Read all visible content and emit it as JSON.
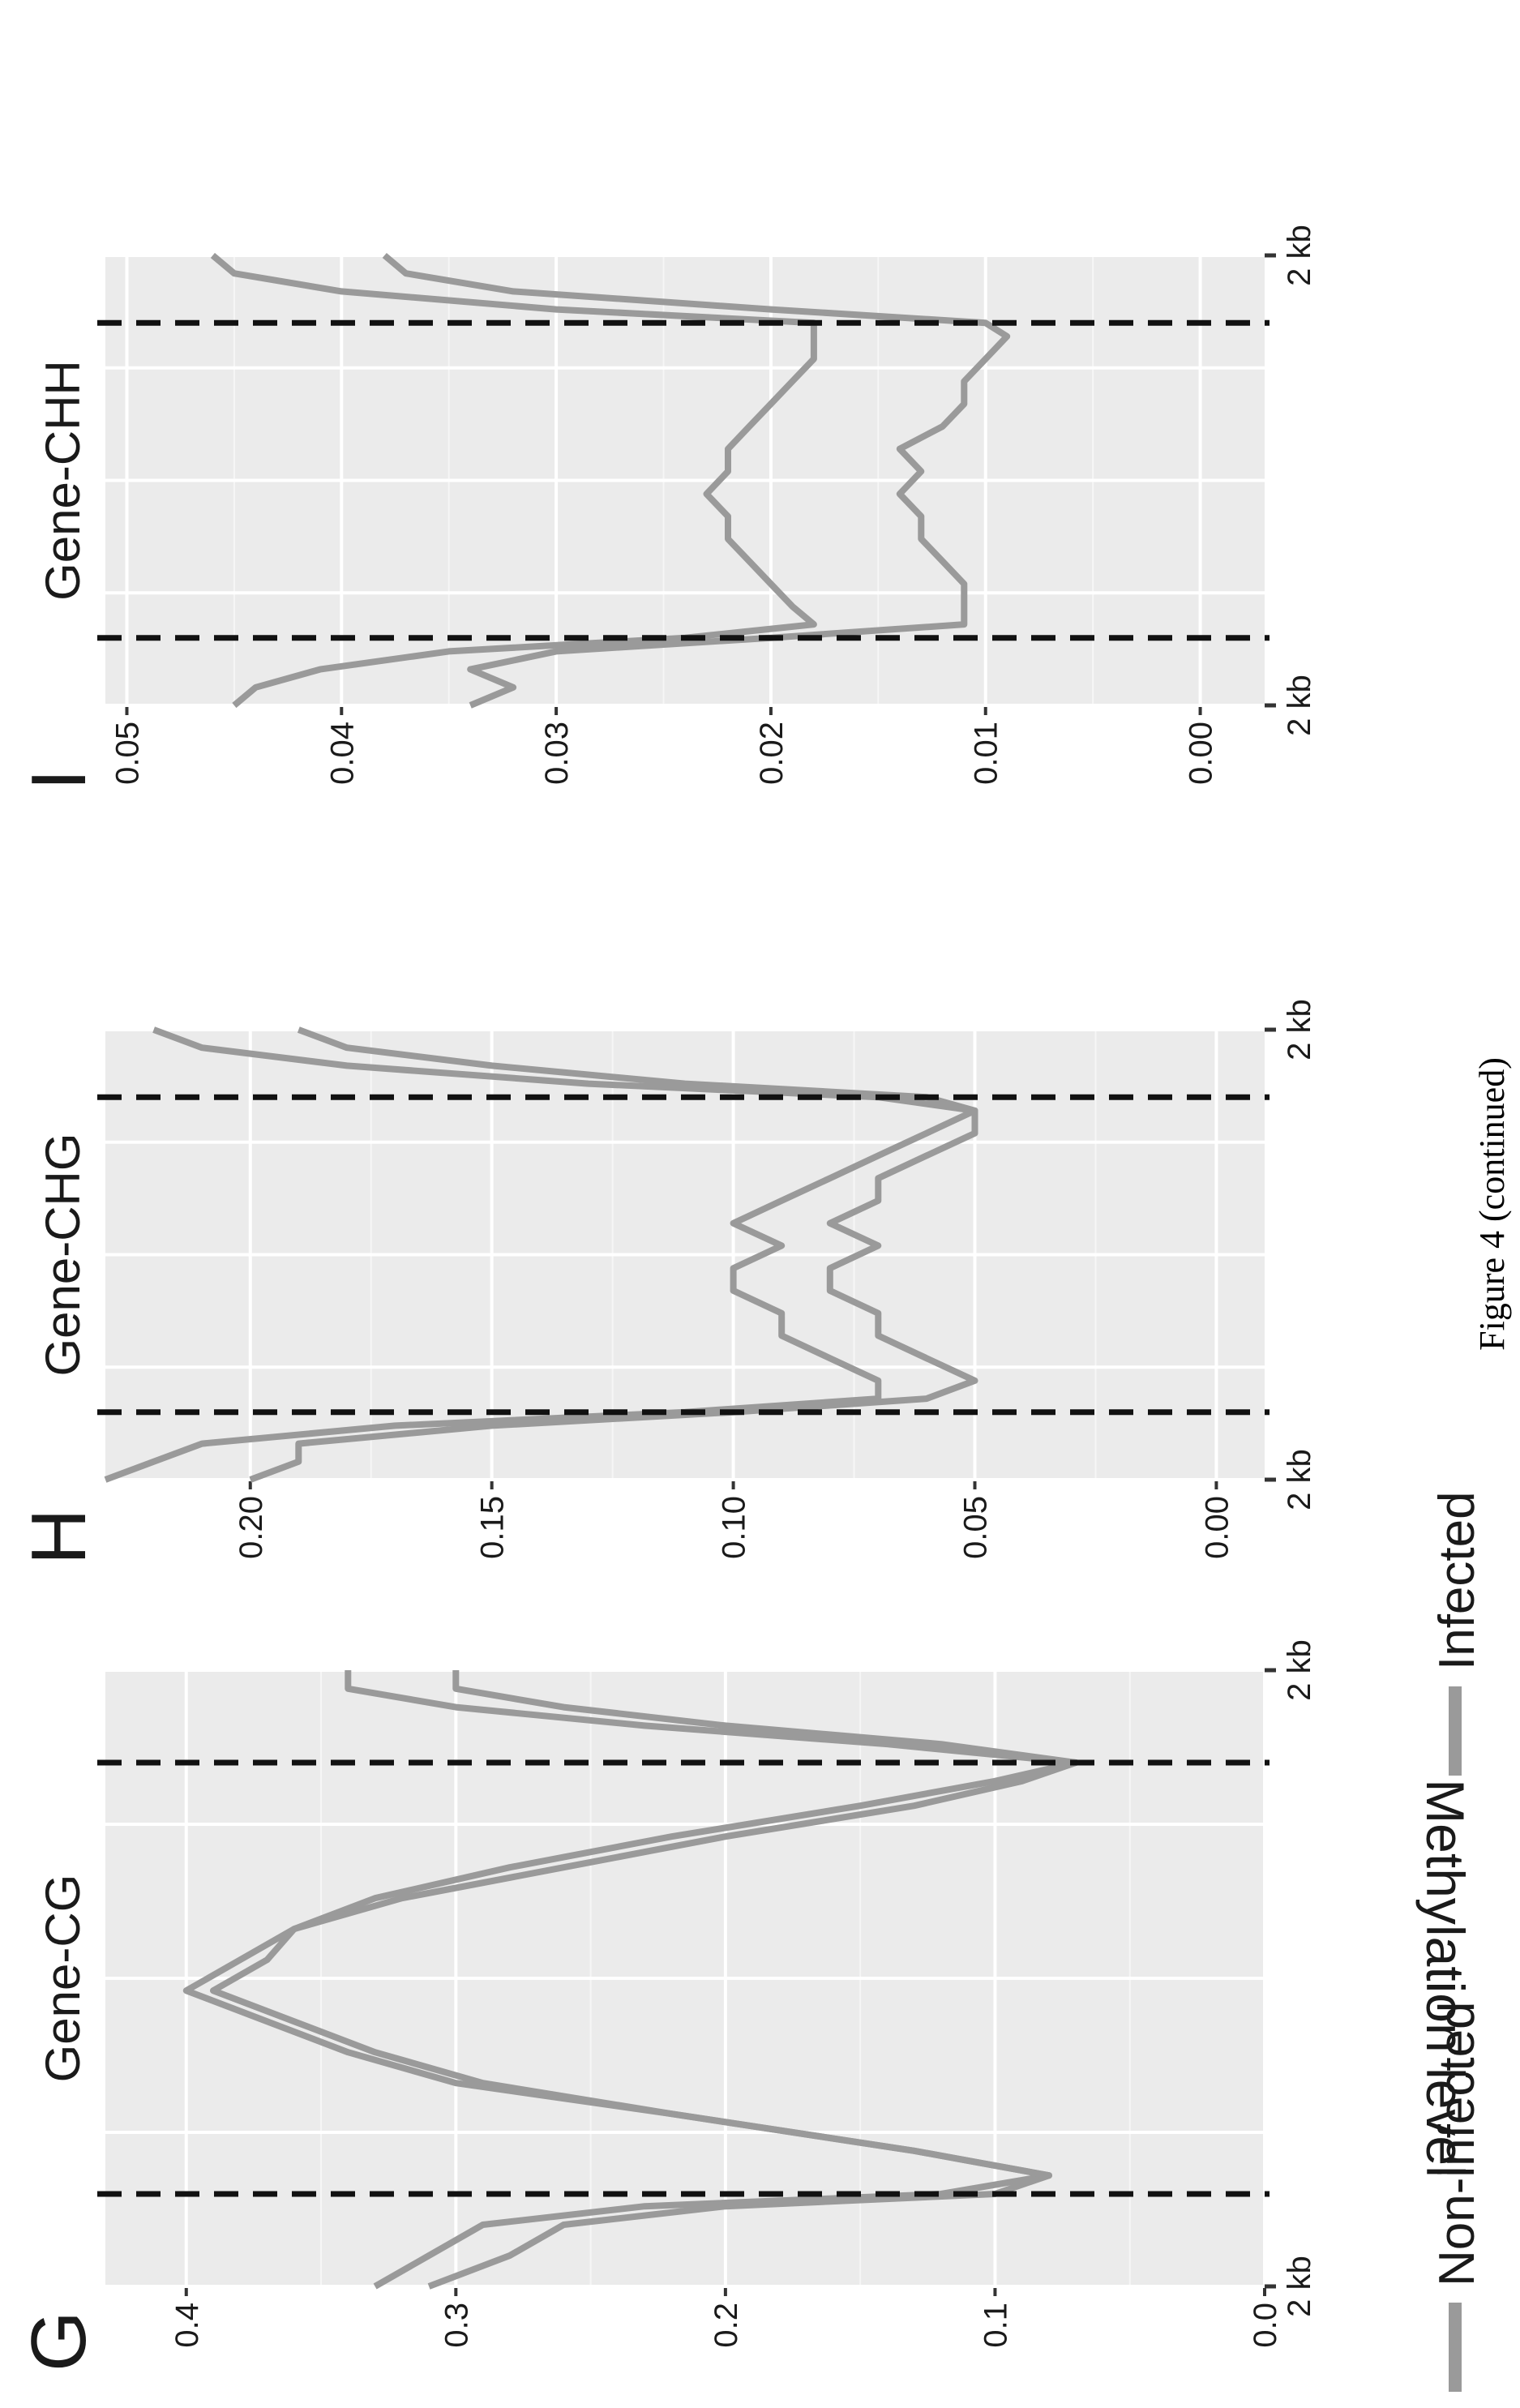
{
  "figure": {
    "caption": "Figure 4 (continued)",
    "y_axis_label": "Methylation level",
    "legend": {
      "placement": "bottom",
      "items": [
        {
          "label": "Non-infected",
          "color": "#9a9a9a"
        },
        {
          "label": "Infected",
          "color": "#9a9a9a"
        }
      ]
    }
  },
  "chart_data": [
    {
      "type": "line",
      "panel_letter": "G",
      "title": "Gene-CG",
      "xlabel": "",
      "ylabel": "Methylation level",
      "x_tick_labels": [
        "2 kb",
        "2 kb"
      ],
      "x_range": [
        0,
        100
      ],
      "boundaries": [
        15,
        85
      ],
      "ylim": [
        0.0,
        0.43
      ],
      "yticks": [
        "0.0",
        "0.1",
        "0.2",
        "0.3",
        "0.4"
      ],
      "grid": true,
      "series": [
        {
          "name": "Non-infected",
          "color": "#9a9a9a",
          "x": [
            0,
            5,
            10,
            13,
            15,
            18,
            22,
            28,
            33,
            38,
            43,
            48,
            53,
            58,
            63,
            68,
            73,
            78,
            82,
            85,
            88,
            91,
            94,
            97,
            100
          ],
          "y": [
            0.33,
            0.31,
            0.29,
            0.23,
            0.12,
            0.08,
            0.13,
            0.22,
            0.29,
            0.33,
            0.36,
            0.39,
            0.37,
            0.36,
            0.33,
            0.28,
            0.22,
            0.15,
            0.1,
            0.07,
            0.12,
            0.2,
            0.26,
            0.3,
            0.3
          ]
        },
        {
          "name": "Infected",
          "color": "#9a9a9a",
          "x": [
            0,
            5,
            10,
            13,
            15,
            18,
            22,
            28,
            33,
            38,
            43,
            48,
            53,
            58,
            63,
            68,
            73,
            78,
            82,
            85,
            88,
            91,
            94,
            97,
            100
          ],
          "y": [
            0.31,
            0.28,
            0.26,
            0.2,
            0.1,
            0.08,
            0.13,
            0.22,
            0.3,
            0.34,
            0.37,
            0.4,
            0.38,
            0.36,
            0.32,
            0.26,
            0.2,
            0.13,
            0.09,
            0.07,
            0.14,
            0.23,
            0.3,
            0.34,
            0.34
          ]
        }
      ]
    },
    {
      "type": "line",
      "panel_letter": "H",
      "title": "Gene-CHG",
      "xlabel": "",
      "ylabel": "",
      "x_tick_labels": [
        "2 kb",
        "2 kb"
      ],
      "x_range": [
        0,
        100
      ],
      "boundaries": [
        15,
        85
      ],
      "ylim": [
        -0.01,
        0.23
      ],
      "yticks": [
        "0.00",
        "0.05",
        "0.10",
        "0.15",
        "0.20"
      ],
      "grid": true,
      "series": [
        {
          "name": "Non-infected",
          "color": "#9a9a9a",
          "x": [
            0,
            4,
            8,
            12,
            15,
            18,
            22,
            27,
            32,
            37,
            42,
            47,
            52,
            57,
            62,
            67,
            72,
            77,
            82,
            85,
            88,
            92,
            96,
            100
          ],
          "y": [
            0.2,
            0.19,
            0.19,
            0.15,
            0.1,
            0.06,
            0.05,
            0.06,
            0.07,
            0.07,
            0.08,
            0.08,
            0.07,
            0.08,
            0.07,
            0.07,
            0.06,
            0.05,
            0.05,
            0.06,
            0.11,
            0.15,
            0.18,
            0.19
          ]
        },
        {
          "name": "Infected",
          "color": "#9a9a9a",
          "x": [
            0,
            4,
            8,
            12,
            15,
            18,
            22,
            27,
            32,
            37,
            42,
            47,
            52,
            57,
            62,
            67,
            72,
            77,
            82,
            85,
            88,
            92,
            96,
            100
          ],
          "y": [
            0.23,
            0.22,
            0.21,
            0.17,
            0.11,
            0.07,
            0.07,
            0.08,
            0.09,
            0.09,
            0.1,
            0.1,
            0.09,
            0.1,
            0.09,
            0.08,
            0.07,
            0.06,
            0.05,
            0.07,
            0.13,
            0.18,
            0.21,
            0.22
          ]
        }
      ]
    },
    {
      "type": "line",
      "panel_letter": "I",
      "title": "Gene-CHH",
      "xlabel": "",
      "ylabel": "",
      "x_tick_labels": [
        "2 kb",
        "2 kb"
      ],
      "x_range": [
        0,
        100
      ],
      "boundaries": [
        15,
        85
      ],
      "ylim": [
        -0.003,
        0.051
      ],
      "yticks": [
        "0.00",
        "0.01",
        "0.02",
        "0.03",
        "0.04",
        "0.05"
      ],
      "grid": true,
      "series": [
        {
          "name": "Non-infected",
          "color": "#9a9a9a",
          "x": [
            0,
            4,
            8,
            12,
            15,
            18,
            22,
            27,
            32,
            37,
            42,
            47,
            52,
            57,
            62,
            67,
            72,
            77,
            82,
            85,
            88,
            92,
            96,
            100
          ],
          "y": [
            0.034,
            0.032,
            0.034,
            0.03,
            0.02,
            0.011,
            0.011,
            0.011,
            0.012,
            0.013,
            0.013,
            0.014,
            0.013,
            0.014,
            0.012,
            0.011,
            0.011,
            0.01,
            0.009,
            0.01,
            0.02,
            0.032,
            0.037,
            0.038
          ]
        },
        {
          "name": "Infected",
          "color": "#9a9a9a",
          "x": [
            0,
            4,
            8,
            12,
            15,
            18,
            22,
            27,
            32,
            37,
            42,
            47,
            52,
            57,
            62,
            67,
            72,
            77,
            82,
            85,
            88,
            92,
            96,
            100
          ],
          "y": [
            0.045,
            0.044,
            0.041,
            0.035,
            0.024,
            0.018,
            0.019,
            0.02,
            0.021,
            0.022,
            0.022,
            0.023,
            0.022,
            0.022,
            0.021,
            0.02,
            0.019,
            0.018,
            0.018,
            0.018,
            0.03,
            0.04,
            0.045,
            0.046
          ]
        }
      ]
    }
  ]
}
